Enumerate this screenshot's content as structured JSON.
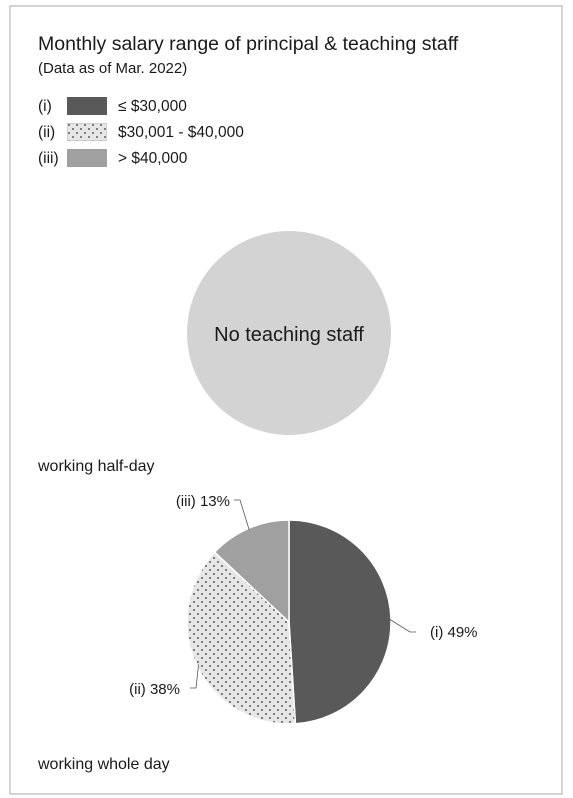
{
  "title": "Monthly salary range of principal & teaching staff",
  "subtitle": "(Data as of Mar. 2022)",
  "legend": [
    {
      "marker": "(i)",
      "label": "≤ $30,000",
      "color": "#595959",
      "pattern": "solid"
    },
    {
      "marker": "(ii)",
      "label": "$30,001 - $40,000",
      "color": "#e6e6e6",
      "pattern": "dots"
    },
    {
      "marker": "(iii)",
      "label": "> $40,000",
      "color": "#a0a0a0",
      "pattern": "solid"
    }
  ],
  "chart_data": [
    {
      "type": "pie",
      "caption": "working half-day",
      "empty_label": "No teaching staff",
      "empty_color": "#d3d3d3",
      "categories": [],
      "values": []
    },
    {
      "type": "pie",
      "caption": "working whole day",
      "categories": [
        "(i)",
        "(ii)",
        "(iii)"
      ],
      "values": [
        49,
        38,
        13
      ],
      "unit": "%",
      "labels": [
        "(i) 49%",
        "(ii) 38%",
        "(iii) 13%"
      ]
    }
  ]
}
